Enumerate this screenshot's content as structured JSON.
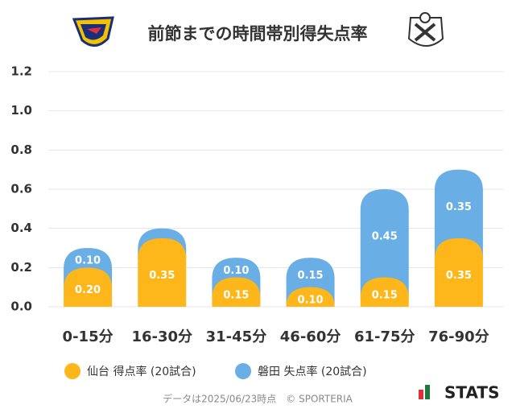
{
  "chart_data": {
    "type": "stacked-bar",
    "title": "前節までの時間帯別得失点率",
    "categories": [
      "0-15分",
      "16-30分",
      "31-45分",
      "46-60分",
      "61-75分",
      "76-90分"
    ],
    "series": [
      {
        "name": "仙台 得点率 (20試合)",
        "color": "#fdb71a",
        "values": [
          0.2,
          0.35,
          0.15,
          0.1,
          0.15,
          0.35
        ],
        "value_labels": [
          "0.20",
          "0.35",
          "0.15",
          "0.10",
          "0.15",
          "0.35"
        ]
      },
      {
        "name": "磐田 失点率 (20試合)",
        "color": "#6aaee6",
        "values": [
          0.1,
          0.05,
          0.1,
          0.15,
          0.45,
          0.35
        ],
        "value_labels": [
          "0.10",
          null,
          "0.10",
          "0.15",
          "0.45",
          "0.35"
        ]
      }
    ],
    "ylim": [
      0,
      1.2
    ],
    "yticks": [
      {
        "value": 0,
        "label": "0.0"
      },
      0.2,
      0.4,
      0.6,
      0.8,
      {
        "value": 1,
        "label": "1.0"
      },
      1.2
    ],
    "grid": true,
    "footer": "データは2025/06/23時点　© SPORTERIA",
    "brand": "STATS"
  }
}
